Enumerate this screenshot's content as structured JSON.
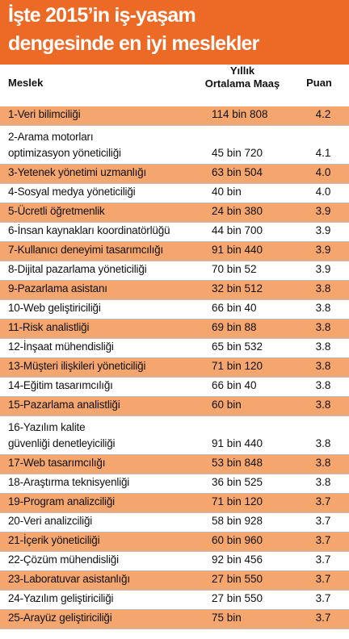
{
  "title": {
    "line1": "İşte 2015’in iş-yaşam",
    "line2": "dengesinde en iyi meslekler"
  },
  "headers": {
    "meslek": "Meslek",
    "maas_line1": "Yıllık",
    "maas_line2": "Ortalama Maaş",
    "puan": "Puan"
  },
  "rows": [
    {
      "name": "1-Veri bilimciliği",
      "salary": "114 bin 808",
      "score": "4.2"
    },
    {
      "name": "2-Arama motorları",
      "name2": "optimizasyon yöneticiliği",
      "salary": "45 bin 720",
      "score": "4.1"
    },
    {
      "name": "3-Yetenek yönetimi uzmanlığı",
      "salary": "63 bin 504",
      "score": "4.0"
    },
    {
      "name": "4-Sosyal medya yöneticiliği",
      "salary": "40 bin",
      "score": "4.0"
    },
    {
      "name": "5-Ücretli öğretmenlik",
      "salary": "24 bin 380",
      "score": "3.9"
    },
    {
      "name": "6-İnsan kaynakları koordinatörlüğü",
      "salary": "44 bin 700",
      "score": "3.9"
    },
    {
      "name": "7-Kullanıcı deneyimi tasarımcılığı",
      "salary": "91 bin 440",
      "score": "3.9"
    },
    {
      "name": "8-Dijital pazarlama yöneticiliği",
      "salary": "70 bin 52",
      "score": "3.9"
    },
    {
      "name": "9-Pazarlama asistanı",
      "salary": "32 bin 512",
      "score": "3.8"
    },
    {
      "name": "10-Web geliştiriciliği",
      "salary": "66 bin 40",
      "score": "3.8"
    },
    {
      "name": "11-Risk analistliği",
      "salary": "69 bin 88",
      "score": "3.8"
    },
    {
      "name": "12-İnşaat mühendisliği",
      "salary": "65 bin 532",
      "score": "3.8"
    },
    {
      "name": "13-Müşteri ilişkileri yöneticiliği",
      "salary": "71 bin 120",
      "score": "3.8"
    },
    {
      "name": "14-Eğitim tasarımcılığı",
      "salary": "66 bin 40",
      "score": "3.8"
    },
    {
      "name": "15-Pazarlama analistliği",
      "salary": "60 bin",
      "score": "3.8"
    },
    {
      "name": "16-Yazılım kalite",
      "name2": "güvenliği denetleyiciliği",
      "salary": "91 bin 440",
      "score": "3.8"
    },
    {
      "name": "17-Web tasarımcılığı",
      "salary": "53 bin 848",
      "score": "3.8"
    },
    {
      "name": "18-Araştırma teknisyenliği",
      "salary": "36 bin 525",
      "score": "3.8"
    },
    {
      "name": "19-Program analizciliği",
      "salary": "71 bin 120",
      "score": "3.7"
    },
    {
      "name": "20-Veri analizciliği",
      "salary": "58 bin 928",
      "score": "3.7"
    },
    {
      "name": "21-İçerik yöneticiliği",
      "salary": "60 bin 960",
      "score": "3.7"
    },
    {
      "name": "22-Çözüm mühendisliği",
      "salary": "92 bin 456",
      "score": "3.7"
    },
    {
      "name": "23-Laboratuvar asistanlığı",
      "salary": "27 bin 550",
      "score": "3.7"
    },
    {
      "name": "24-Yazılım geliştiriciliği",
      "salary": "27 bin 550",
      "score": "3.7"
    },
    {
      "name": "25-Arayüz geliştiriciliği",
      "salary": "75 bin",
      "score": "3.7"
    }
  ],
  "colors": {
    "banner": "#ec6a25",
    "row_highlight": "#f5a56e",
    "divider": "#bdbdbd"
  }
}
